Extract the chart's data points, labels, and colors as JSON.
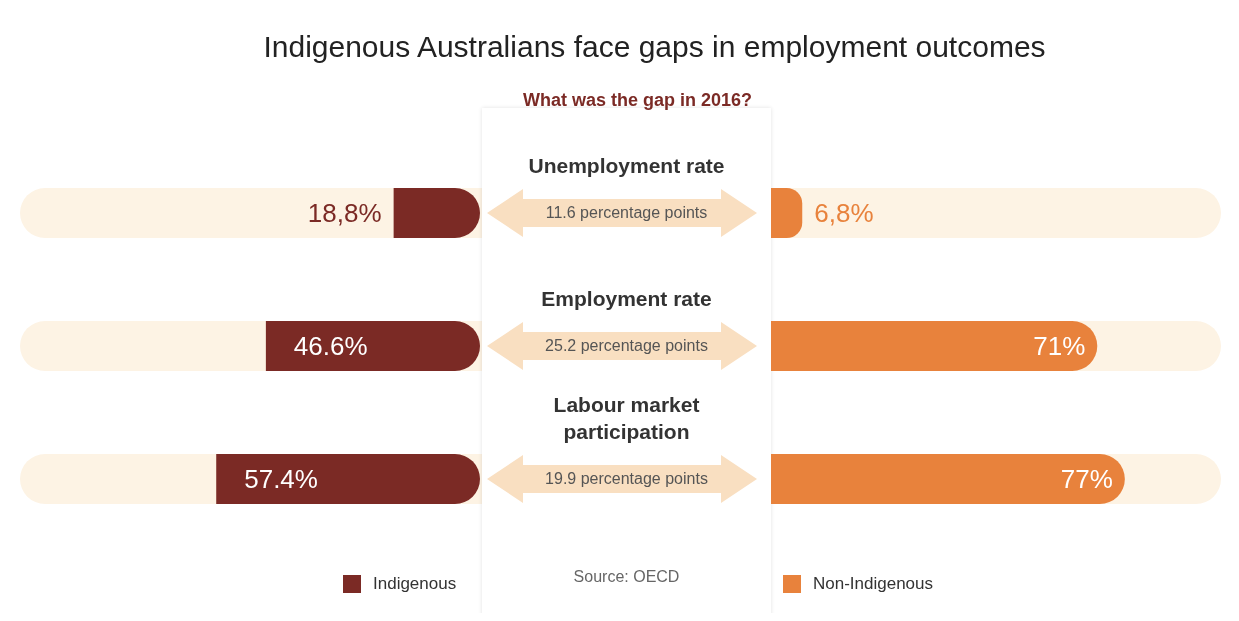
{
  "chart_data": [
    {
      "type": "bar",
      "orientation": "horizontal",
      "title": "Indigenous Australians face gaps in employment outcomes",
      "subtitle": "What was the gap in 2016?",
      "categories": [
        "Unemployment rate",
        "Employment rate",
        "Labour market participation"
      ],
      "series": [
        {
          "name": "Indigenous",
          "color": "#7b2a25",
          "values": [
            18.8,
            46.6,
            57.4
          ],
          "value_labels": [
            "18,8%",
            "46.6%",
            "57.4%"
          ]
        }
      ],
      "annotations": [
        "11.6 percentage points",
        "25.2 percentage points",
        "19.9 percentage points",
        "Source: OECD"
      ],
      "legend": "bottom"
    },
    {
      "type": "bar",
      "orientation": "horizontal",
      "categories": [
        null,
        null,
        null
      ],
      "series": [
        {
          "name": "Non-Indigenous",
          "color": "#e8823c",
          "values": [
            6.8,
            71,
            77
          ],
          "value_labels": [
            "6,8%",
            "71%",
            "77%"
          ]
        }
      ],
      "legend": "bottom"
    }
  ]
}
